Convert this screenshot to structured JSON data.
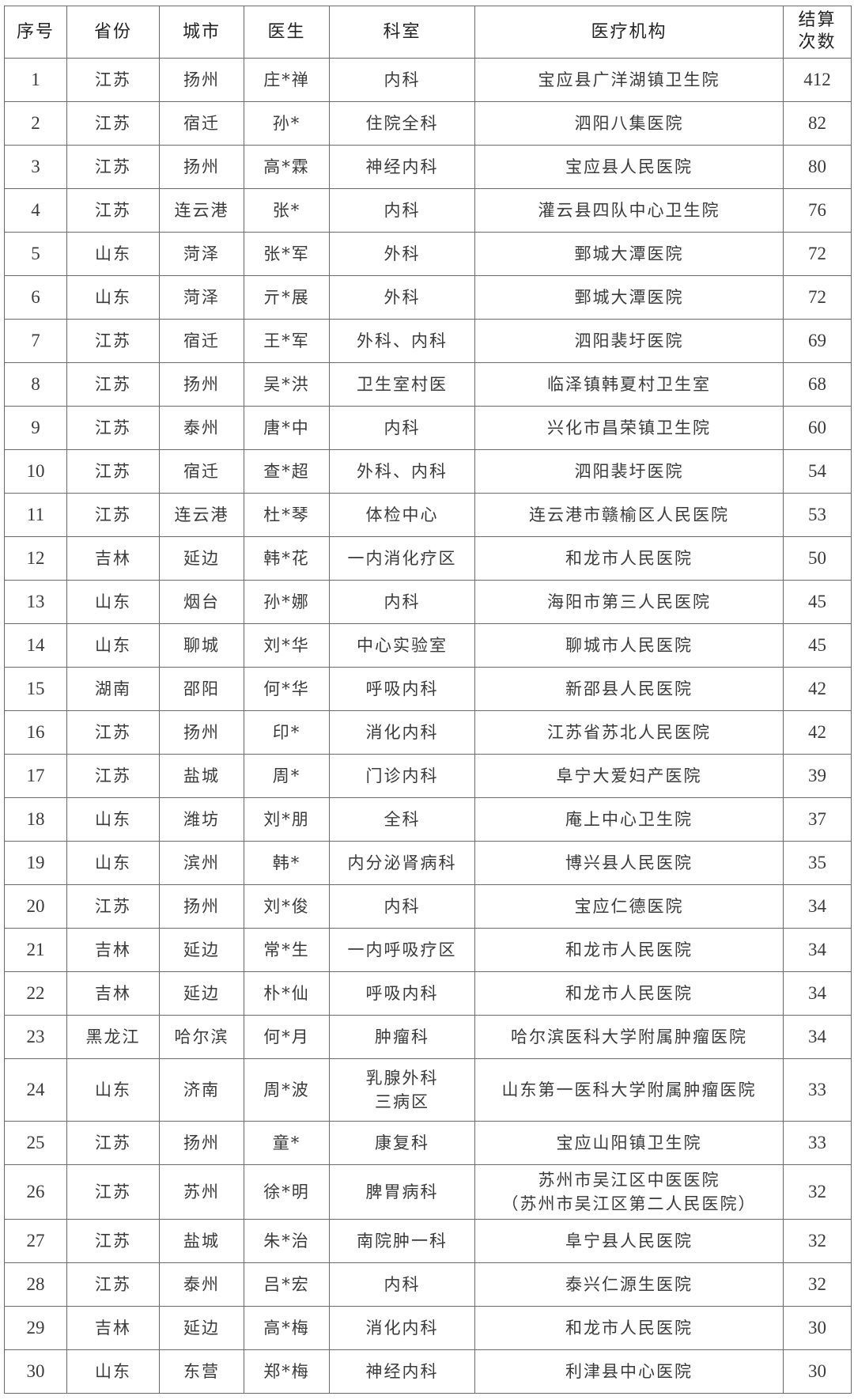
{
  "headers": [
    "序号",
    "省份",
    "城市",
    "医生",
    "科室",
    "医疗机构",
    "结算次数"
  ],
  "rows": [
    [
      "1",
      "江苏",
      "扬州",
      "庄*禅",
      "内科",
      "宝应县广洋湖镇卫生院",
      "412"
    ],
    [
      "2",
      "江苏",
      "宿迁",
      "孙*",
      "住院全科",
      "泗阳八集医院",
      "82"
    ],
    [
      "3",
      "江苏",
      "扬州",
      "高*霖",
      "神经内科",
      "宝应县人民医院",
      "80"
    ],
    [
      "4",
      "江苏",
      "连云港",
      "张*",
      "内科",
      "灌云县四队中心卫生院",
      "76"
    ],
    [
      "5",
      "山东",
      "菏泽",
      "张*军",
      "外科",
      "鄄城大潭医院",
      "72"
    ],
    [
      "6",
      "山东",
      "菏泽",
      "亓*展",
      "外科",
      "鄄城大潭医院",
      "72"
    ],
    [
      "7",
      "江苏",
      "宿迁",
      "王*军",
      "外科、内科",
      "泗阳裴圩医院",
      "69"
    ],
    [
      "8",
      "江苏",
      "扬州",
      "吴*洪",
      "卫生室村医",
      "临泽镇韩夏村卫生室",
      "68"
    ],
    [
      "9",
      "江苏",
      "泰州",
      "唐*中",
      "内科",
      "兴化市昌荣镇卫生院",
      "60"
    ],
    [
      "10",
      "江苏",
      "宿迁",
      "查*超",
      "外科、内科",
      "泗阳裴圩医院",
      "54"
    ],
    [
      "11",
      "江苏",
      "连云港",
      "杜*琴",
      "体检中心",
      "连云港市赣榆区人民医院",
      "53"
    ],
    [
      "12",
      "吉林",
      "延边",
      "韩*花",
      "一内消化疗区",
      "和龙市人民医院",
      "50"
    ],
    [
      "13",
      "山东",
      "烟台",
      "孙*娜",
      "内科",
      "海阳市第三人民医院",
      "45"
    ],
    [
      "14",
      "山东",
      "聊城",
      "刘*华",
      "中心实验室",
      "聊城市人民医院",
      "45"
    ],
    [
      "15",
      "湖南",
      "邵阳",
      "何*华",
      "呼吸内科",
      "新邵县人民医院",
      "42"
    ],
    [
      "16",
      "江苏",
      "扬州",
      "印*",
      "消化内科",
      "江苏省苏北人民医院",
      "42"
    ],
    [
      "17",
      "江苏",
      "盐城",
      "周*",
      "门诊内科",
      "阜宁大爱妇产医院",
      "39"
    ],
    [
      "18",
      "山东",
      "潍坊",
      "刘*朋",
      "全科",
      "庵上中心卫生院",
      "37"
    ],
    [
      "19",
      "山东",
      "滨州",
      "韩*",
      "内分泌肾病科",
      "博兴县人民医院",
      "35"
    ],
    [
      "20",
      "江苏",
      "扬州",
      "刘*俊",
      "内科",
      "宝应仁德医院",
      "34"
    ],
    [
      "21",
      "吉林",
      "延边",
      "常*生",
      "一内呼吸疗区",
      "和龙市人民医院",
      "34"
    ],
    [
      "22",
      "吉林",
      "延边",
      "朴*仙",
      "呼吸内科",
      "和龙市人民医院",
      "34"
    ],
    [
      "23",
      "黑龙江",
      "哈尔滨",
      "何*月",
      "肿瘤科",
      "哈尔滨医科大学附属肿瘤医院",
      "34"
    ],
    [
      "24",
      "山东",
      "济南",
      "周*波",
      "乳腺外科\n三病区",
      "山东第一医科大学附属肿瘤医院",
      "33"
    ],
    [
      "25",
      "江苏",
      "扬州",
      "童*",
      "康复科",
      "宝应山阳镇卫生院",
      "33"
    ],
    [
      "26",
      "江苏",
      "苏州",
      "徐*明",
      "脾胃病科",
      "苏州市吴江区中医医院\n（苏州市吴江区第二人民医院）",
      "32"
    ],
    [
      "27",
      "江苏",
      "盐城",
      "朱*治",
      "南院肿一科",
      "阜宁县人民医院",
      "32"
    ],
    [
      "28",
      "江苏",
      "泰州",
      "吕*宏",
      "内科",
      "泰兴仁源生医院",
      "32"
    ],
    [
      "29",
      "吉林",
      "延边",
      "高*梅",
      "消化内科",
      "和龙市人民医院",
      "30"
    ],
    [
      "30",
      "山东",
      "东营",
      "郑*梅",
      "神经内科",
      "利津县中心医院",
      "30"
    ]
  ]
}
